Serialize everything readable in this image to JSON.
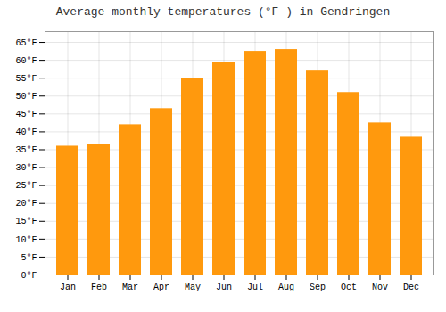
{
  "chart_data": {
    "type": "bar",
    "title": "Average monthly temperatures (°F ) in Gendringen",
    "categories": [
      "Jan",
      "Feb",
      "Mar",
      "Apr",
      "May",
      "Jun",
      "Jul",
      "Aug",
      "Sep",
      "Oct",
      "Nov",
      "Dec"
    ],
    "values": [
      36,
      36.5,
      42,
      46.5,
      55,
      59.5,
      62.5,
      63,
      57,
      51,
      42.5,
      38.5
    ],
    "color": "#ff990d",
    "ylim": [
      0,
      68
    ],
    "yticks": [
      {
        "value": 0,
        "label": "0°F"
      },
      {
        "value": 5,
        "label": "5°F"
      },
      {
        "value": 10,
        "label": "10°F"
      },
      {
        "value": 15,
        "label": "15°F"
      },
      {
        "value": 20,
        "label": "20°F"
      },
      {
        "value": 25,
        "label": "25°F"
      },
      {
        "value": 30,
        "label": "30°F"
      },
      {
        "value": 35,
        "label": "35°F"
      },
      {
        "value": 40,
        "label": "40°F"
      },
      {
        "value": 45,
        "label": "45°F"
      },
      {
        "value": 50,
        "label": "50°F"
      },
      {
        "value": 55,
        "label": "55°F"
      },
      {
        "value": 60,
        "label": "60°F"
      },
      {
        "value": 65,
        "label": "65°F"
      }
    ],
    "grid": true
  }
}
